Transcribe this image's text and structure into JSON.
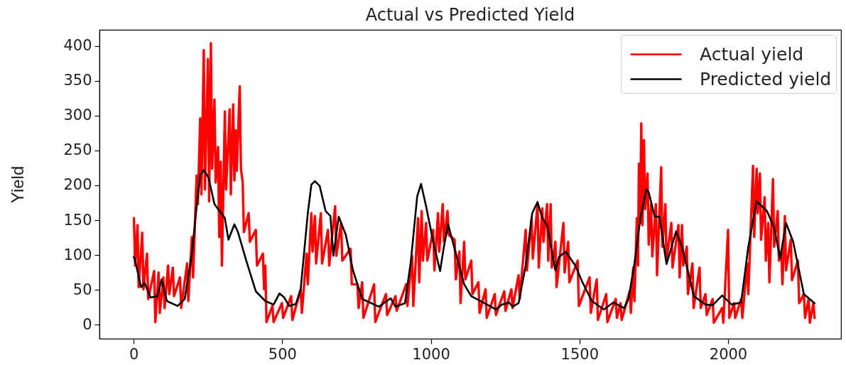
{
  "chart_data": {
    "type": "line",
    "title": "Actual vs Predicted Yield",
    "ylabel": "Yield",
    "xlim": [
      -115,
      2380
    ],
    "xticks": [
      0,
      500,
      1000,
      1500,
      2000
    ],
    "ylim": [
      -20,
      423
    ],
    "yticks": [
      0,
      50,
      100,
      150,
      200,
      250,
      300,
      350,
      400
    ],
    "legend": "top right",
    "series": [
      {
        "name": "Actual yield",
        "color": "#ff0000",
        "x": [
          1,
          5,
          13,
          17,
          29,
          33,
          45,
          49,
          69,
          73,
          84,
          88,
          100,
          104,
          116,
          120,
          132,
          136,
          156,
          160,
          180,
          184,
          196,
          200,
          212,
          216,
          224,
          228,
          236,
          240,
          250,
          254,
          260,
          264,
          272,
          276,
          284,
          288,
          293,
          297,
          307,
          311,
          323,
          327,
          335,
          339,
          343,
          347,
          357,
          361,
          367,
          371,
          387,
          391,
          411,
          415,
          435,
          439,
          443,
          447,
          467,
          471,
          499,
          503,
          530,
          534,
          562,
          566,
          582,
          586,
          598,
          602,
          610,
          614,
          630,
          634,
          654,
          658,
          678,
          682,
          698,
          702,
          730,
          734,
          753,
          757,
          769,
          773,
          809,
          813,
          849,
          853,
          881,
          885,
          917,
          921,
          937,
          941,
          957,
          961,
          969,
          973,
          984,
          988,
          1008,
          1012,
          1024,
          1028,
          1040,
          1044,
          1056,
          1060,
          1080,
          1084,
          1096,
          1100,
          1112,
          1116,
          1136,
          1140,
          1160,
          1164,
          1184,
          1188,
          1215,
          1219,
          1247,
          1251,
          1271,
          1275,
          1295,
          1299,
          1319,
          1323,
          1339,
          1343,
          1359,
          1363,
          1375,
          1379,
          1391,
          1395,
          1403,
          1407,
          1419,
          1423,
          1446,
          1450,
          1462,
          1466,
          1494,
          1498,
          1534,
          1538,
          1558,
          1562,
          1590,
          1594,
          1622,
          1626,
          1638,
          1642,
          1669,
          1673,
          1681,
          1685,
          1693,
          1697,
          1700,
          1704,
          1708,
          1712,
          1717,
          1721,
          1729,
          1733,
          1741,
          1745,
          1757,
          1761,
          1775,
          1779,
          1789,
          1793,
          1809,
          1813,
          1833,
          1837,
          1845,
          1849,
          1861,
          1865,
          1880,
          1884,
          1904,
          1908,
          1924,
          1928,
          1948,
          1952,
          1980,
          1984,
          2000,
          2004,
          2020,
          2024,
          2044,
          2048,
          2064,
          2068,
          2084,
          2088,
          2096,
          2100,
          2107,
          2111,
          2123,
          2127,
          2135,
          2139,
          2151,
          2155,
          2167,
          2171,
          2179,
          2183,
          2191,
          2195,
          2211,
          2215,
          2235,
          2239,
          2255,
          2259,
          2271,
          2275,
          2287,
          2291
        ],
        "values": [
          153,
          85,
          143,
          54,
          132,
          51,
          102,
          37,
          77,
          4,
          75,
          17,
          68,
          24,
          85,
          44,
          82,
          41,
          68,
          24,
          88,
          34,
          126,
          68,
          214,
          173,
          296,
          187,
          394,
          194,
          381,
          177,
          404,
          224,
          323,
          204,
          255,
          126,
          234,
          85,
          306,
          194,
          309,
          187,
          316,
          207,
          279,
          221,
          342,
          224,
          204,
          133,
          160,
          119,
          136,
          85,
          102,
          51,
          85,
          4,
          27,
          4,
          31,
          10,
          41,
          7,
          51,
          17,
          102,
          58,
          160,
          105,
          156,
          88,
          160,
          88,
          136,
          85,
          170,
          99,
          146,
          92,
          109,
          58,
          58,
          24,
          61,
          10,
          58,
          4,
          44,
          14,
          41,
          20,
          58,
          27,
          99,
          27,
          153,
          61,
          163,
          92,
          146,
          92,
          136,
          78,
          160,
          105,
          173,
          119,
          163,
          129,
          122,
          65,
          105,
          31,
          119,
          65,
          92,
          44,
          61,
          17,
          51,
          10,
          44,
          14,
          48,
          20,
          51,
          24,
          71,
          37,
          136,
          78,
          153,
          95,
          173,
          82,
          167,
          119,
          173,
          92,
          173,
          82,
          119,
          54,
          146,
          75,
          119,
          61,
          92,
          27,
          68,
          17,
          65,
          7,
          44,
          4,
          37,
          10,
          31,
          7,
          48,
          17,
          82,
          34,
          153,
          85,
          231,
          146,
          289,
          143,
          265,
          166,
          217,
          115,
          173,
          98,
          173,
          71,
          226,
          112,
          173,
          92,
          146,
          82,
          143,
          68,
          143,
          85,
          112,
          44,
          88,
          24,
          82,
          24,
          44,
          14,
          37,
          3,
          24,
          3,
          136,
          10,
          31,
          10,
          37,
          10,
          88,
          44,
          228,
          126,
          224,
          160,
          217,
          122,
          183,
          92,
          146,
          61,
          209,
          112,
          163,
          92,
          105,
          58,
          156,
          78,
          122,
          64,
          92,
          31,
          44,
          10,
          37,
          3,
          31,
          10
        ]
      },
      {
        "name": "Predicted yield",
        "color": "#000000",
        "x": [
          0,
          3,
          25,
          37,
          57,
          80,
          94,
          112,
          148,
          172,
          196,
          212,
          224,
          236,
          252,
          272,
          307,
          319,
          339,
          351,
          379,
          411,
          443,
          471,
          491,
          507,
          523,
          546,
          562,
          586,
          598,
          610,
          626,
          646,
          662,
          672,
          690,
          714,
          738,
          769,
          825,
          865,
          881,
          913,
          933,
          954,
          967,
          984,
          1008,
          1031,
          1044,
          1058,
          1080,
          1112,
          1136,
          1176,
          1219,
          1239,
          1263,
          1275,
          1295,
          1319,
          1341,
          1359,
          1375,
          1391,
          1419,
          1431,
          1454,
          1486,
          1510,
          1542,
          1582,
          1614,
          1650,
          1665,
          1685,
          1705,
          1725,
          1733,
          1753,
          1769,
          1793,
          1825,
          1845,
          1885,
          1924,
          1948,
          1980,
          2012,
          2044,
          2068,
          2096,
          2131,
          2155,
          2175,
          2195,
          2219,
          2255,
          2291
        ],
        "values": [
          97,
          96,
          54,
          60,
          39,
          41,
          65,
          34,
          27,
          37,
          102,
          170,
          214,
          222,
          211,
          173,
          153,
          122,
          144,
          133,
          92,
          48,
          34,
          29,
          45,
          39,
          27,
          30,
          51,
          160,
          201,
          206,
          199,
          163,
          156,
          99,
          155,
          129,
          78,
          37,
          26,
          38,
          26,
          31,
          92,
          184,
          202,
          170,
          119,
          77,
          112,
          144,
          109,
          58,
          41,
          32,
          22,
          29,
          32,
          26,
          31,
          85,
          160,
          176,
          153,
          143,
          78,
          97,
          105,
          85,
          61,
          34,
          22,
          32,
          24,
          37,
          88,
          153,
          194,
          190,
          155,
          155,
          87,
          134,
          112,
          41,
          29,
          28,
          42,
          29,
          32,
          112,
          177,
          163,
          139,
          95,
          146,
          119,
          44,
          31
        ]
      }
    ]
  }
}
